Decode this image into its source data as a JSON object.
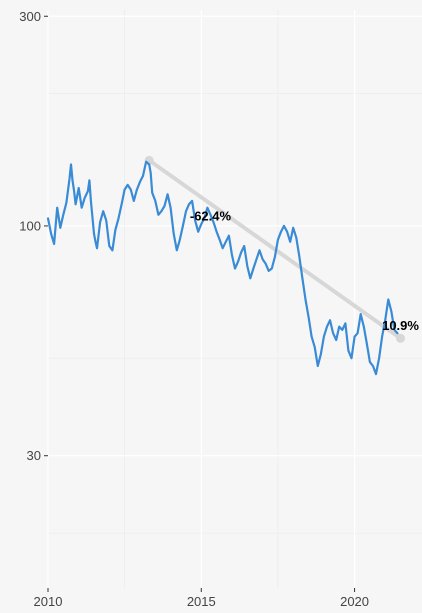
{
  "chart_data": {
    "type": "line",
    "title": "",
    "xlabel": "",
    "ylabel": "",
    "y_scale": "log",
    "grid": true,
    "xlim": [
      2010,
      2022.2
    ],
    "ylim": [
      15,
      310
    ],
    "x_ticks": [
      2010,
      2015,
      2020
    ],
    "x_tick_labels": [
      "2010",
      "2015",
      "2020"
    ],
    "y_ticks": [
      30,
      100,
      300
    ],
    "y_tick_labels": [
      "30",
      "100",
      "300"
    ],
    "series": [
      {
        "color": "#3a8bd6",
        "x": [
          2010.0,
          2010.1,
          2010.2,
          2010.3,
          2010.4,
          2010.5,
          2010.6,
          2010.7,
          2010.75,
          2010.8,
          2010.85,
          2010.9,
          2011.0,
          2011.1,
          2011.2,
          2011.3,
          2011.35,
          2011.4,
          2011.5,
          2011.55,
          2011.6,
          2011.7,
          2011.8,
          2011.9,
          2012.0,
          2012.1,
          2012.2,
          2012.3,
          2012.4,
          2012.5,
          2012.6,
          2012.7,
          2012.8,
          2012.9,
          2013.0,
          2013.1,
          2013.2,
          2013.3,
          2013.35,
          2013.4,
          2013.5,
          2013.6,
          2013.7,
          2013.8,
          2013.9,
          2014.0,
          2014.1,
          2014.2,
          2014.3,
          2014.4,
          2014.5,
          2014.6,
          2014.7,
          2014.8,
          2014.9,
          2015.0,
          2015.1,
          2015.2,
          2015.3,
          2015.4,
          2015.5,
          2015.6,
          2015.7,
          2015.8,
          2015.9,
          2016.0,
          2016.1,
          2016.2,
          2016.3,
          2016.4,
          2016.5,
          2016.6,
          2016.7,
          2016.8,
          2016.9,
          2017.0,
          2017.1,
          2017.2,
          2017.3,
          2017.4,
          2017.5,
          2017.6,
          2017.7,
          2017.8,
          2017.9,
          2018.0,
          2018.1,
          2018.2,
          2018.3,
          2018.4,
          2018.5,
          2018.6,
          2018.7,
          2018.8,
          2018.9,
          2019.0,
          2019.1,
          2019.2,
          2019.3,
          2019.4,
          2019.5,
          2019.6,
          2019.7,
          2019.8,
          2019.9,
          2020.0,
          2020.1,
          2020.2,
          2020.3,
          2020.4,
          2020.5,
          2020.6,
          2020.7,
          2020.8,
          2020.9,
          2021.0,
          2021.1,
          2021.2,
          2021.3,
          2021.4
        ],
        "y": [
          104,
          96,
          91,
          110,
          99,
          106,
          113,
          128,
          138,
          127,
          120,
          112,
          122,
          110,
          116,
          120,
          127,
          114,
          96,
          92,
          89,
          102,
          108,
          103,
          90,
          88,
          98,
          104,
          112,
          121,
          124,
          121,
          114,
          121,
          126,
          130,
          140,
          138,
          132,
          119,
          114,
          106,
          108,
          111,
          118,
          110,
          96,
          88,
          93,
          100,
          108,
          112,
          114,
          103,
          97,
          101,
          104,
          110,
          106,
          102,
          97,
          93,
          89,
          92,
          95,
          86,
          80,
          83,
          87,
          90,
          81,
          76,
          80,
          84,
          88,
          84,
          82,
          79,
          80,
          85,
          93,
          97,
          100,
          97,
          92,
          99,
          94,
          85,
          76,
          68,
          62,
          56,
          53,
          48,
          51,
          56,
          59,
          61,
          57,
          55,
          59,
          58,
          60,
          52,
          50,
          56,
          57,
          63,
          59,
          54,
          49,
          48,
          46,
          50,
          56,
          61,
          68,
          64,
          58,
          57
        ]
      }
    ],
    "trend": {
      "x": [
        2013.3,
        2021.5
      ],
      "y": [
        141,
        55.5
      ],
      "color": "#d7d7d7"
    },
    "annotations": [
      {
        "text": "-62.4%",
        "x": 2015.3,
        "y": 103
      },
      {
        "text": "10.9%",
        "x": 2021.5,
        "y": 58
      }
    ]
  }
}
